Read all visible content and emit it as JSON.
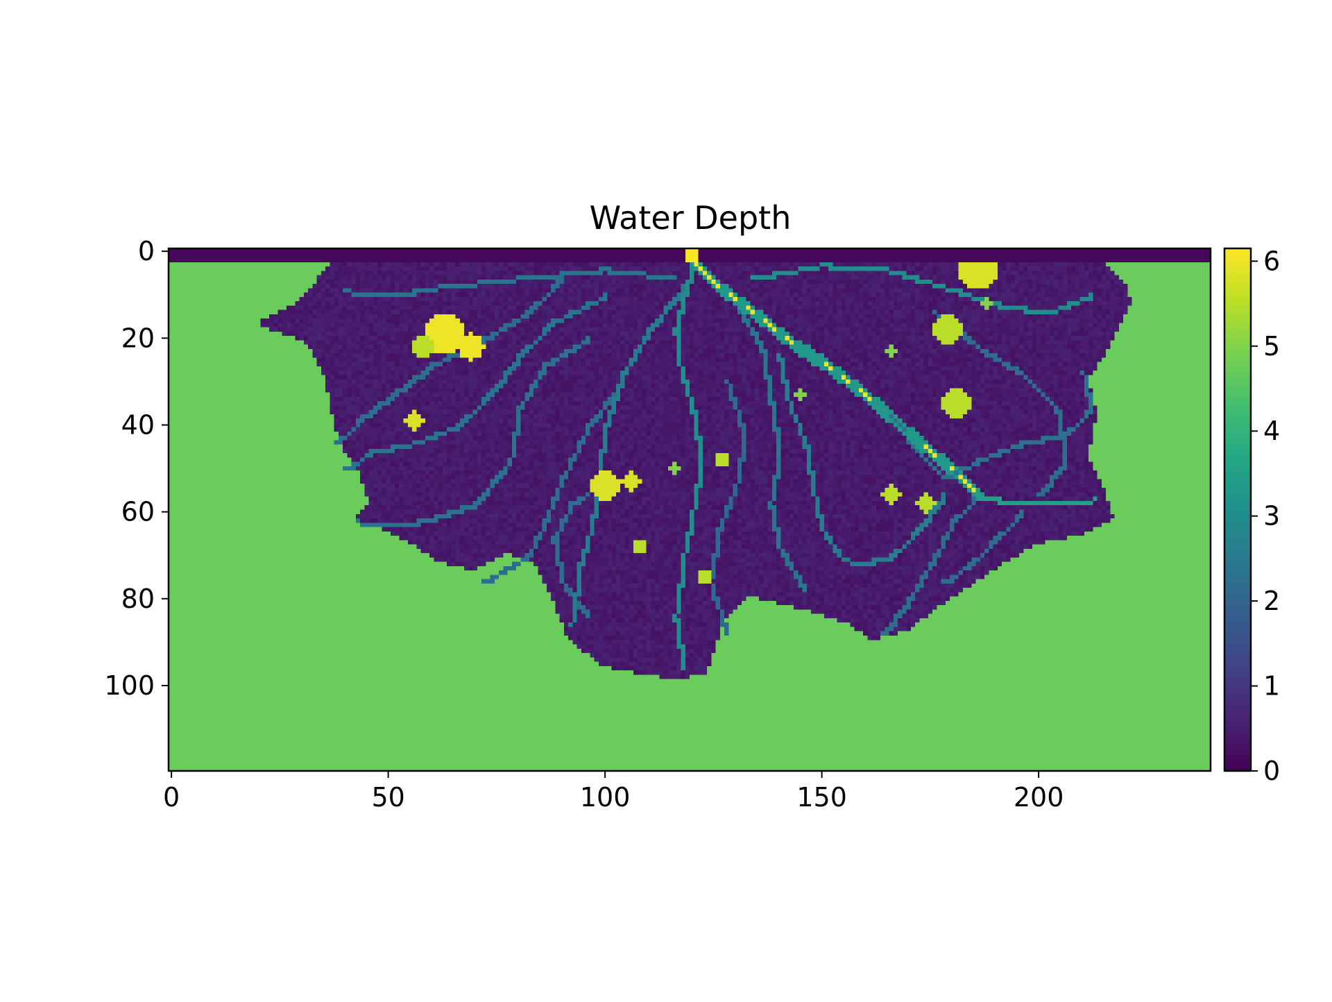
{
  "chart_data": {
    "type": "heatmap",
    "title": "Water Depth",
    "xlabel": "",
    "ylabel": "",
    "grid_shape": {
      "rows": 120,
      "cols": 240
    },
    "xlim": [
      -0.5,
      239.5
    ],
    "ylim": [
      119.5,
      -0.5
    ],
    "x_ticks": [
      0,
      50,
      100,
      150,
      200
    ],
    "y_ticks": [
      0,
      20,
      40,
      60,
      80,
      100
    ],
    "colormap": "viridis",
    "colorbar": {
      "vmin": 0,
      "vmax": 6.15,
      "ticks": [
        0,
        1,
        2,
        3,
        4,
        5,
        6
      ],
      "tick_labels": [
        "0",
        "1",
        "2",
        "3",
        "4",
        "5",
        "6"
      ]
    },
    "background_value": 4.75,
    "inlet_row_value": 0.1,
    "delta_region_value": 0.45,
    "channels": [
      {
        "name": "main",
        "value": 6.0,
        "points": [
          [
            120,
            0
          ],
          [
            121,
            3
          ],
          [
            126,
            8
          ],
          [
            134,
            14
          ],
          [
            143,
            21
          ],
          [
            152,
            27
          ],
          [
            160,
            33
          ],
          [
            168,
            40
          ],
          [
            176,
            47
          ],
          [
            182,
            52
          ],
          [
            186,
            56
          ]
        ]
      },
      {
        "name": "main-lower",
        "value": 3.5,
        "points": [
          [
            186,
            56
          ],
          [
            194,
            58
          ],
          [
            204,
            58
          ],
          [
            213,
            57
          ]
        ]
      },
      {
        "name": "central-trunk",
        "value": 3.0,
        "points": [
          [
            120,
            4
          ],
          [
            118,
            10
          ],
          [
            116,
            18
          ],
          [
            117,
            26
          ],
          [
            120,
            36
          ],
          [
            122,
            48
          ],
          [
            120,
            60
          ],
          [
            118,
            70
          ],
          [
            116,
            84
          ],
          [
            118,
            96
          ]
        ]
      },
      {
        "name": "center-left",
        "value": 2.6,
        "points": [
          [
            118,
            8
          ],
          [
            110,
            18
          ],
          [
            104,
            28
          ],
          [
            100,
            40
          ],
          [
            98,
            52
          ],
          [
            97,
            62
          ],
          [
            94,
            72
          ],
          [
            92,
            86
          ]
        ]
      },
      {
        "name": "left-1",
        "value": 2.4,
        "points": [
          [
            116,
            6
          ],
          [
            100,
            4
          ],
          [
            80,
            6
          ],
          [
            62,
            8
          ],
          [
            50,
            10
          ],
          [
            40,
            9
          ]
        ]
      },
      {
        "name": "left-2",
        "value": 2.4,
        "points": [
          [
            100,
            10
          ],
          [
            88,
            16
          ],
          [
            80,
            24
          ],
          [
            74,
            32
          ],
          [
            66,
            40
          ],
          [
            56,
            44
          ],
          [
            46,
            46
          ],
          [
            40,
            50
          ]
        ]
      },
      {
        "name": "left-3",
        "value": 2.3,
        "points": [
          [
            96,
            20
          ],
          [
            86,
            26
          ],
          [
            80,
            36
          ],
          [
            78,
            48
          ],
          [
            70,
            58
          ],
          [
            58,
            62
          ],
          [
            46,
            63
          ],
          [
            43,
            62
          ]
        ]
      },
      {
        "name": "left-4",
        "value": 2.2,
        "points": [
          [
            90,
            6
          ],
          [
            82,
            14
          ],
          [
            72,
            20
          ],
          [
            60,
            26
          ],
          [
            52,
            32
          ],
          [
            44,
            38
          ],
          [
            38,
            44
          ]
        ]
      },
      {
        "name": "left-5",
        "value": 2.2,
        "points": [
          [
            104,
            30
          ],
          [
            96,
            40
          ],
          [
            90,
            52
          ],
          [
            86,
            62
          ],
          [
            82,
            70
          ],
          [
            72,
            76
          ]
        ]
      },
      {
        "name": "left-6",
        "value": 2.2,
        "points": [
          [
            98,
            54
          ],
          [
            92,
            58
          ],
          [
            88,
            66
          ],
          [
            90,
            76
          ],
          [
            96,
            84
          ]
        ]
      },
      {
        "name": "right-1",
        "value": 3.0,
        "points": [
          [
            134,
            6
          ],
          [
            150,
            3
          ],
          [
            165,
            4
          ],
          [
            178,
            8
          ],
          [
            190,
            12
          ],
          [
            202,
            14
          ],
          [
            212,
            10
          ]
        ]
      },
      {
        "name": "right-2",
        "value": 2.6,
        "points": [
          [
            140,
            24
          ],
          [
            142,
            34
          ],
          [
            146,
            44
          ],
          [
            148,
            56
          ],
          [
            150,
            64
          ],
          [
            154,
            70
          ],
          [
            158,
            72
          ],
          [
            166,
            70
          ],
          [
            172,
            64
          ],
          [
            178,
            56
          ]
        ]
      },
      {
        "name": "right-3",
        "value": 2.4,
        "points": [
          [
            130,
            12
          ],
          [
            136,
            22
          ],
          [
            138,
            34
          ],
          [
            140,
            46
          ],
          [
            138,
            58
          ],
          [
            140,
            68
          ],
          [
            146,
            78
          ]
        ]
      },
      {
        "name": "right-4",
        "value": 2.3,
        "points": [
          [
            158,
            30
          ],
          [
            166,
            38
          ],
          [
            172,
            46
          ],
          [
            178,
            52
          ],
          [
            186,
            48
          ],
          [
            196,
            44
          ],
          [
            206,
            42
          ],
          [
            212,
            36
          ],
          [
            210,
            28
          ]
        ]
      },
      {
        "name": "right-5",
        "value": 2.2,
        "points": [
          [
            186,
            56
          ],
          [
            180,
            62
          ],
          [
            176,
            70
          ],
          [
            170,
            80
          ],
          [
            164,
            88
          ]
        ]
      },
      {
        "name": "right-6",
        "value": 2.2,
        "points": [
          [
            176,
            14
          ],
          [
            186,
            22
          ],
          [
            196,
            28
          ],
          [
            204,
            36
          ],
          [
            206,
            48
          ],
          [
            200,
            56
          ]
        ]
      },
      {
        "name": "right-7",
        "value": 2.1,
        "points": [
          [
            128,
            30
          ],
          [
            132,
            42
          ],
          [
            130,
            54
          ],
          [
            126,
            64
          ],
          [
            124,
            76
          ],
          [
            128,
            88
          ]
        ]
      },
      {
        "name": "right-8",
        "value": 2.2,
        "points": [
          [
            196,
            60
          ],
          [
            190,
            66
          ],
          [
            184,
            72
          ],
          [
            178,
            76
          ]
        ]
      }
    ],
    "dry_patches": [
      {
        "cx": 63,
        "cy": 19,
        "r": 4.5,
        "value": 6.0
      },
      {
        "cx": 69,
        "cy": 22,
        "r": 3,
        "value": 6.0
      },
      {
        "cx": 58,
        "cy": 22,
        "r": 2.5,
        "value": 5.5
      },
      {
        "cx": 56,
        "cy": 39,
        "r": 2,
        "value": 5.8
      },
      {
        "cx": 100,
        "cy": 54,
        "r": 3.5,
        "value": 5.8
      },
      {
        "cx": 106,
        "cy": 53,
        "r": 2,
        "value": 5.8
      },
      {
        "cx": 108,
        "cy": 68,
        "r": 1.5,
        "value": 5.5
      },
      {
        "cx": 127,
        "cy": 48,
        "r": 1.5,
        "value": 5.5
      },
      {
        "cx": 123,
        "cy": 75,
        "r": 1.5,
        "value": 5.5
      },
      {
        "cx": 116,
        "cy": 50,
        "r": 1.2,
        "value": 5.0
      },
      {
        "cx": 179,
        "cy": 18,
        "r": 3.5,
        "value": 5.5
      },
      {
        "cx": 181,
        "cy": 35,
        "r": 3.2,
        "value": 5.5
      },
      {
        "cx": 186,
        "cy": 4,
        "r": 4.5,
        "value": 5.8
      },
      {
        "cx": 166,
        "cy": 56,
        "r": 2,
        "value": 5.5
      },
      {
        "cx": 174,
        "cy": 58,
        "r": 2,
        "value": 5.5
      },
      {
        "cx": 166,
        "cy": 23,
        "r": 1.2,
        "value": 5.0
      },
      {
        "cx": 145,
        "cy": 33,
        "r": 1.2,
        "value": 5.0
      },
      {
        "cx": 188,
        "cy": 12,
        "r": 1.2,
        "value": 5.0
      }
    ]
  }
}
